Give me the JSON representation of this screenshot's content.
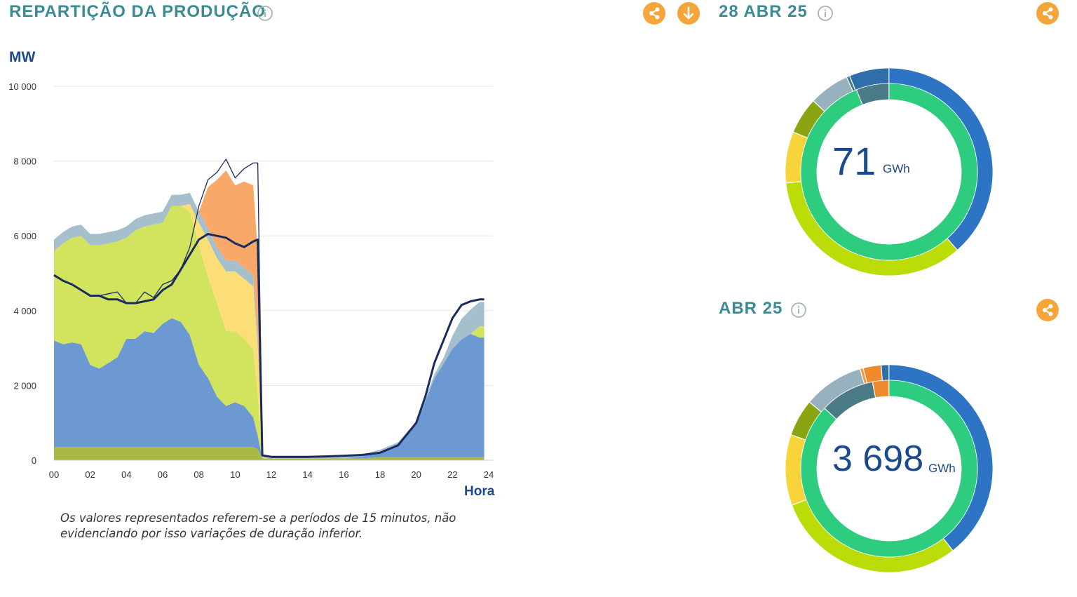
{
  "chart_panel": {
    "title": "REPARTIÇÃO DA PRODUÇÃO",
    "share_icon": "share-icon",
    "download_icon": "download-icon",
    "note": "Os valores representados referem-se a períodos de 15 minutos, não evidenciando por isso variações de duração inferior."
  },
  "day_panel": {
    "title": "28 ABR 25",
    "share_icon": "share-icon",
    "total_value": "71",
    "total_unit": "GWh"
  },
  "month_panel": {
    "title": "ABR 25",
    "share_icon": "share-icon",
    "total_value": "3 698",
    "total_unit": "GWh"
  },
  "colors": {
    "title": "#3a8b94",
    "accent_button": "#f6a53a",
    "axis_text": "#1b4a8c",
    "grid": "#e6e6e6"
  },
  "chart_data": [
    {
      "type": "area",
      "ylabel": "MW",
      "xlabel": "Hora",
      "ylim": [
        0,
        10000
      ],
      "xlim": [
        0,
        24
      ],
      "yticks": [
        0,
        2000,
        4000,
        6000,
        8000,
        10000
      ],
      "ytick_labels": [
        "0",
        "2 000",
        "4 000",
        "6 000",
        "8 000",
        "10 000"
      ],
      "xticks": [
        0,
        2,
        4,
        6,
        8,
        10,
        12,
        14,
        16,
        18,
        20,
        22,
        24
      ],
      "xtick_labels": [
        "00",
        "02",
        "04",
        "06",
        "08",
        "10",
        "12",
        "14",
        "16",
        "18",
        "20",
        "22",
        "24"
      ],
      "grid": true,
      "x": [
        0,
        0.5,
        1,
        1.5,
        2,
        2.5,
        3,
        3.5,
        4,
        4.5,
        5,
        5.5,
        6,
        6.5,
        7,
        7.5,
        8,
        8.5,
        9,
        9.5,
        10,
        10.5,
        11,
        11.25,
        11.5,
        12,
        13,
        14,
        15,
        16,
        17,
        18,
        19,
        20,
        20.5,
        21,
        21.5,
        22,
        22.5,
        23,
        23.5,
        23.75
      ],
      "series": [
        {
          "color": "#a9b846",
          "values": [
            350,
            350,
            350,
            350,
            350,
            350,
            350,
            350,
            350,
            350,
            350,
            350,
            350,
            350,
            350,
            350,
            350,
            350,
            350,
            350,
            350,
            350,
            350,
            300,
            50,
            50,
            50,
            50,
            50,
            50,
            50,
            80,
            80,
            80,
            80,
            80,
            80,
            80,
            80,
            80,
            80,
            80
          ]
        },
        {
          "color": "#6c99d2",
          "values": [
            2850,
            2750,
            2800,
            2750,
            2200,
            2100,
            2250,
            2400,
            2900,
            2900,
            3100,
            3050,
            3300,
            3450,
            3350,
            3000,
            2200,
            1850,
            1350,
            1100,
            1200,
            1100,
            800,
            350,
            0,
            0,
            0,
            0,
            0,
            0,
            50,
            150,
            350,
            900,
            1500,
            2100,
            2500,
            2900,
            3150,
            3300,
            3200,
            3200
          ]
        },
        {
          "color": "#d2e45e",
          "values": [
            2400,
            2700,
            2800,
            2900,
            3200,
            3300,
            3200,
            3100,
            2700,
            2900,
            2800,
            2900,
            2700,
            3000,
            3100,
            3300,
            3200,
            2700,
            2500,
            2000,
            1900,
            1800,
            1800,
            1100,
            20,
            0,
            0,
            0,
            0,
            0,
            0,
            0,
            0,
            0,
            0,
            0,
            0,
            0,
            0,
            0,
            300,
            300
          ]
        },
        {
          "color": "#fbde78",
          "values": [
            0,
            0,
            0,
            0,
            0,
            0,
            0,
            0,
            0,
            0,
            0,
            0,
            0,
            0,
            0,
            200,
            600,
            1000,
            1200,
            1600,
            1600,
            1600,
            1700,
            1300,
            0,
            0,
            0,
            0,
            0,
            0,
            0,
            0,
            0,
            0,
            0,
            0,
            0,
            0,
            0,
            0,
            0,
            0
          ]
        },
        {
          "color": "#a6bfcd",
          "values": [
            300,
            300,
            300,
            300,
            300,
            300,
            300,
            300,
            300,
            300,
            300,
            300,
            300,
            300,
            300,
            300,
            300,
            300,
            300,
            300,
            300,
            300,
            300,
            300,
            100,
            50,
            50,
            50,
            50,
            50,
            50,
            50,
            50,
            50,
            50,
            120,
            150,
            350,
            550,
            650,
            650,
            650
          ]
        },
        {
          "color": "#f8a868",
          "values": [
            0,
            0,
            0,
            0,
            0,
            0,
            0,
            0,
            0,
            0,
            0,
            0,
            0,
            0,
            0,
            0,
            0,
            1100,
            1800,
            2400,
            2000,
            2300,
            2400,
            2200,
            0,
            0,
            0,
            0,
            0,
            0,
            0,
            0,
            0,
            0,
            0,
            0,
            0,
            0,
            0,
            0,
            0,
            0
          ]
        },
        {
          "type": "line",
          "color": "#1b2b5e",
          "width": 3,
          "values": [
            4950,
            4800,
            4700,
            4550,
            4400,
            4400,
            4300,
            4300,
            4200,
            4200,
            4250,
            4300,
            4550,
            4700,
            5100,
            5500,
            5900,
            6050,
            6000,
            5950,
            5800,
            5700,
            5850,
            5900,
            130,
            90,
            90,
            90,
            100,
            120,
            140,
            200,
            400,
            1000,
            1700,
            2600,
            3200,
            3800,
            4150,
            4250,
            4300,
            4300
          ]
        },
        {
          "type": "line",
          "color": "#1b2b5e",
          "width": 1.3,
          "values": [
            4950,
            4800,
            4700,
            4550,
            4400,
            4400,
            4450,
            4500,
            4200,
            4200,
            4500,
            4350,
            4700,
            4800,
            5100,
            5700,
            6800,
            7500,
            7700,
            8050,
            7550,
            7800,
            7950,
            7950,
            130,
            90,
            90,
            90,
            100,
            120,
            140,
            200,
            400,
            1000,
            1700,
            2600,
            3200,
            3800,
            4150,
            4250,
            4300,
            4300
          ]
        }
      ]
    },
    {
      "type": "pie",
      "title": "28 ABR 25",
      "outer_ring": [
        {
          "color": "#2d74c4",
          "value": 38.6
        },
        {
          "color": "#bcdc07",
          "value": 34.7
        },
        {
          "color": "#f7d43a",
          "value": 8.0
        },
        {
          "color": "#8ba414",
          "value": 5.7
        },
        {
          "color": "#98b1bf",
          "value": 6.3
        },
        {
          "color": "#4a7a86",
          "value": 0.5
        },
        {
          "color": "#2f6fa9",
          "value": 6.2
        }
      ],
      "inner_ring": [
        {
          "color": "#2ecc7f",
          "value": 94
        },
        {
          "color": "#4a7a86",
          "value": 6
        }
      ],
      "center_value": "71",
      "center_unit": "GWh"
    },
    {
      "type": "pie",
      "title": "ABR 25",
      "outer_ring": [
        {
          "color": "#2d74c4",
          "value": 39.5
        },
        {
          "color": "#bcdc07",
          "value": 29.8
        },
        {
          "color": "#f7d43a",
          "value": 11.0
        },
        {
          "color": "#8ba414",
          "value": 5.8
        },
        {
          "color": "#98b1bf",
          "value": 9.4
        },
        {
          "color": "#f39a4a",
          "value": 0.5
        },
        {
          "color": "#f08a30",
          "value": 2.8
        },
        {
          "color": "#2f6fa9",
          "value": 1.2
        }
      ],
      "inner_ring": [
        {
          "color": "#2ecc7f",
          "value": 87
        },
        {
          "color": "#4a7a86",
          "value": 10
        },
        {
          "color": "#f08a30",
          "value": 3
        }
      ],
      "center_value": "3 698",
      "center_unit": "GWh"
    }
  ]
}
